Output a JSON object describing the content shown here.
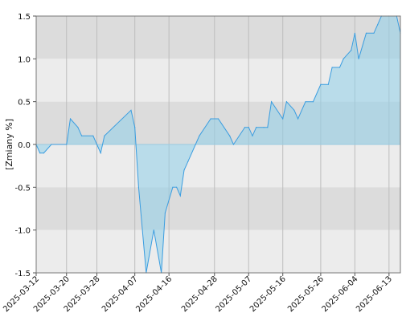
{
  "chart_data": {
    "type": "area",
    "ylabel": "[Zmiany %]",
    "ylim": [
      -1.5,
      1.5
    ],
    "y_ticks": [
      "1.5",
      "1.0",
      "0.5",
      "0.0",
      "-0.5",
      "-1.0",
      "-1.5"
    ],
    "y_tick_values": [
      1.5,
      1.0,
      0.5,
      0.0,
      -0.5,
      -1.0,
      -1.5
    ],
    "xlim": [
      "2025-03-12",
      "2025-06-16"
    ],
    "x_ticks": [
      "2025-03-12",
      "2025-03-20",
      "2025-03-28",
      "2025-04-07",
      "2025-04-16",
      "2025-04-28",
      "2025-05-07",
      "2025-05-16",
      "2025-05-26",
      "2025-06-04",
      "2025-06-13"
    ],
    "grid": true,
    "series": [
      {
        "x": [
          "2025-03-12",
          "2025-03-13",
          "2025-03-14",
          "2025-03-16",
          "2025-03-20",
          "2025-03-21",
          "2025-03-23",
          "2025-03-24",
          "2025-03-27",
          "2025-03-28",
          "2025-03-29",
          "2025-03-30",
          "2025-04-06",
          "2025-04-07",
          "2025-04-08",
          "2025-04-10",
          "2025-04-12",
          "2025-04-14",
          "2025-04-15",
          "2025-04-17",
          "2025-04-18",
          "2025-04-19",
          "2025-04-20",
          "2025-04-21",
          "2025-04-23",
          "2025-04-24",
          "2025-04-27",
          "2025-04-29",
          "2025-05-02",
          "2025-05-03",
          "2025-05-06",
          "2025-05-07",
          "2025-05-08",
          "2025-05-09",
          "2025-05-11",
          "2025-05-12",
          "2025-05-13",
          "2025-05-16",
          "2025-05-17",
          "2025-05-19",
          "2025-05-20",
          "2025-05-22",
          "2025-05-24",
          "2025-05-26",
          "2025-05-28",
          "2025-05-29",
          "2025-05-31",
          "2025-06-01",
          "2025-06-03",
          "2025-06-04",
          "2025-06-05",
          "2025-06-07",
          "2025-06-09",
          "2025-06-10",
          "2025-06-11",
          "2025-06-13",
          "2025-06-15",
          "2025-06-16"
        ],
        "values": [
          0.0,
          -0.1,
          -0.1,
          0.0,
          0.0,
          0.3,
          0.2,
          0.1,
          0.1,
          0.0,
          -0.1,
          0.1,
          0.4,
          0.2,
          -0.5,
          -1.5,
          -1.0,
          -1.5,
          -0.8,
          -0.5,
          -0.5,
          -0.6,
          -0.3,
          -0.2,
          0.0,
          0.1,
          0.3,
          0.3,
          0.1,
          0.0,
          0.2,
          0.2,
          0.1,
          0.2,
          0.2,
          0.2,
          0.5,
          0.3,
          0.5,
          0.4,
          0.3,
          0.5,
          0.5,
          0.7,
          0.7,
          0.9,
          0.9,
          1.0,
          1.1,
          1.3,
          1.0,
          1.3,
          1.3,
          1.4,
          1.5,
          1.5,
          1.5,
          1.3
        ]
      }
    ]
  }
}
